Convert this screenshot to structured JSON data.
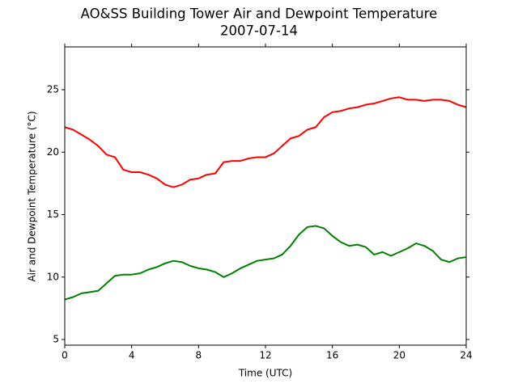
{
  "chart_data": {
    "type": "line",
    "title": "AO&SS Building Tower Air and Dewpoint Temperature",
    "subtitle": "2007-07-14",
    "x_label": "Time (UTC)",
    "y_label": "Air and Dewpoint Temperature (°C)",
    "x": [
      0,
      0.5,
      1,
      1.5,
      2,
      2.5,
      3,
      3.5,
      4,
      4.5,
      5,
      5.5,
      6,
      6.5,
      7,
      7.5,
      8,
      8.5,
      9,
      9.5,
      10,
      10.5,
      11,
      11.5,
      12,
      12.5,
      13,
      13.5,
      14,
      14.5,
      15,
      15.5,
      16,
      16.5,
      17,
      17.5,
      18,
      18.5,
      19,
      19.5,
      20,
      20.5,
      21,
      21.5,
      22,
      22.5,
      23,
      23.5,
      24
    ],
    "series": [
      {
        "color": "#ff0000",
        "values": [
          22.0,
          21.8,
          21.4,
          21.0,
          20.5,
          19.8,
          19.6,
          18.6,
          18.4,
          18.4,
          18.2,
          17.9,
          17.4,
          17.2,
          17.4,
          17.8,
          17.9,
          18.2,
          18.3,
          19.2,
          19.3,
          19.3,
          19.5,
          19.6,
          19.6,
          19.9,
          20.5,
          21.1,
          21.3,
          21.8,
          22.0,
          22.8,
          23.2,
          23.3,
          23.5,
          23.6,
          23.8,
          23.9,
          24.1,
          24.3,
          24.4,
          24.2,
          24.2,
          24.1,
          24.2,
          24.2,
          24.1,
          23.8,
          23.6
        ]
      },
      {
        "color": "#008000",
        "values": [
          8.2,
          8.4,
          8.7,
          8.8,
          8.9,
          9.5,
          10.1,
          10.2,
          10.2,
          10.3,
          10.6,
          10.8,
          11.1,
          11.3,
          11.2,
          10.9,
          10.7,
          10.6,
          10.4,
          10.0,
          10.3,
          10.7,
          11.0,
          11.3,
          11.4,
          11.5,
          11.8,
          12.5,
          13.4,
          14.0,
          14.1,
          13.9,
          13.3,
          12.8,
          12.5,
          12.6,
          12.4,
          11.8,
          12.0,
          11.7,
          12.0,
          12.3,
          12.7,
          12.5,
          12.1,
          11.4,
          11.2,
          11.5,
          11.6
        ]
      }
    ],
    "xlim": [
      0,
      24
    ],
    "xticks": [
      0,
      4,
      8,
      12,
      16,
      20,
      24
    ],
    "ylim": [
      4.55,
      28.43
    ],
    "yticks": [
      5,
      10,
      15,
      20,
      25
    ]
  }
}
